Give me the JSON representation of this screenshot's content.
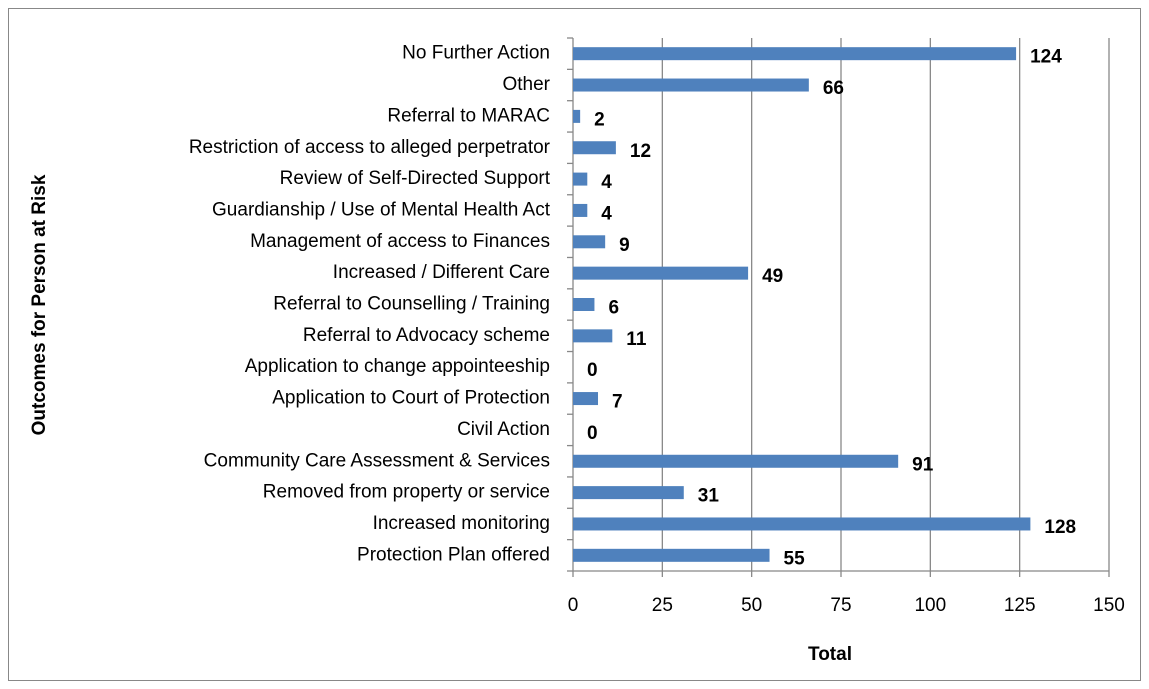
{
  "chart_data": {
    "type": "bar",
    "orientation": "horizontal",
    "x_label": "Total",
    "y_label": "Outcomes for Person at Risk",
    "categories": [
      "No Further Action",
      "Other",
      "Referral to MARAC",
      "Restriction of access to alleged perpetrator",
      "Review of Self-Directed Support",
      "Guardianship / Use of Mental Health Act",
      "Management of access to Finances",
      "Increased / Different Care",
      "Referral to Counselling / Training",
      "Referral to Advocacy scheme",
      "Application to change appointeeship",
      "Application to Court of Protection",
      "Civil Action",
      "Community Care Assessment & Services",
      "Removed from property or service",
      "Increased monitoring",
      "Protection Plan offered"
    ],
    "values": [
      124,
      66,
      2,
      12,
      4,
      4,
      9,
      49,
      6,
      11,
      0,
      7,
      0,
      91,
      31,
      128,
      55
    ],
    "color": "#4f81bd",
    "xlim": [
      0,
      150
    ],
    "xticks": [
      0,
      25,
      50,
      75,
      100,
      125,
      150
    ],
    "grid": true
  }
}
